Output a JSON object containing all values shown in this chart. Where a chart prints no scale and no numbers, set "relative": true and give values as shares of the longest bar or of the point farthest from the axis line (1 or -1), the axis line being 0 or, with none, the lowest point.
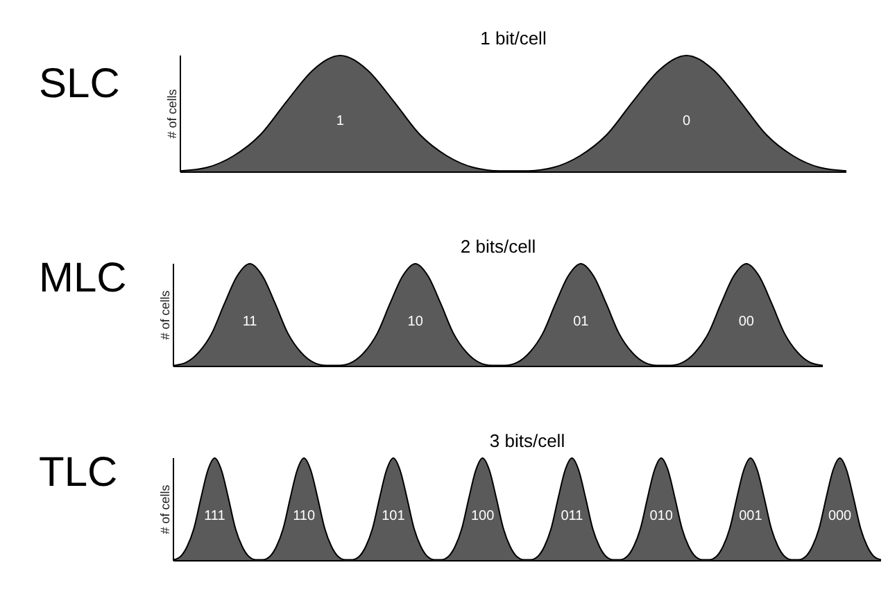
{
  "chart_data": [
    {
      "type": "area",
      "title": "SLC",
      "subtitle": "1 bit/cell",
      "ylabel": "# of cells",
      "relative": true,
      "annotations": [
        "1",
        "0"
      ],
      "categories": [
        null,
        null,
        null,
        null,
        null,
        null,
        null,
        null,
        null,
        null,
        null,
        null,
        null,
        null,
        null,
        null,
        null,
        null,
        null,
        null,
        null,
        null,
        null,
        null,
        null,
        null
      ],
      "series": [
        {
          "color": "#5a5a5a",
          "values": [
            0.01,
            0.04,
            0.14,
            0.32,
            0.61,
            0.88,
            1,
            0.88,
            0.61,
            0.32,
            0.14,
            0.04,
            0.01,
            0.01,
            0.04,
            0.14,
            0.32,
            0.61,
            0.88,
            1,
            0.88,
            0.61,
            0.32,
            0.14,
            0.04,
            0.01
          ]
        }
      ]
    },
    {
      "type": "area",
      "title": "MLC",
      "subtitle": "2 bits/cell",
      "ylabel": "# of cells",
      "relative": true,
      "annotations": [
        "11",
        "10",
        "01",
        "00"
      ],
      "categories": [
        null,
        null,
        null,
        null,
        null,
        null,
        null,
        null,
        null,
        null,
        null,
        null,
        null,
        null,
        null,
        null,
        null,
        null,
        null,
        null,
        null,
        null,
        null,
        null,
        null,
        null,
        null,
        null,
        null,
        null,
        null,
        null,
        null,
        null,
        null,
        null,
        null,
        null,
        null,
        null,
        null,
        null,
        null,
        null,
        null,
        null,
        null,
        null,
        null,
        null,
        null,
        null
      ],
      "series": [
        {
          "color": "#5a5a5a",
          "values": [
            0.01,
            0.04,
            0.14,
            0.32,
            0.61,
            0.88,
            1,
            0.88,
            0.61,
            0.32,
            0.14,
            0.04,
            0.01,
            0.01,
            0.04,
            0.14,
            0.32,
            0.61,
            0.88,
            1,
            0.88,
            0.61,
            0.32,
            0.14,
            0.04,
            0.01,
            0.01,
            0.04,
            0.14,
            0.32,
            0.61,
            0.88,
            1,
            0.88,
            0.61,
            0.32,
            0.14,
            0.04,
            0.01,
            0.01,
            0.04,
            0.14,
            0.32,
            0.61,
            0.88,
            1,
            0.88,
            0.61,
            0.32,
            0.14,
            0.04,
            0.01
          ]
        }
      ]
    },
    {
      "type": "area",
      "title": "TLC",
      "subtitle": "3 bits/cell",
      "ylabel": "# of cells",
      "relative": true,
      "annotations": [
        "111",
        "110",
        "101",
        "100",
        "011",
        "010",
        "001",
        "000"
      ],
      "categories": [
        null,
        null,
        null,
        null,
        null,
        null,
        null,
        null,
        null,
        null,
        null,
        null,
        null,
        null,
        null,
        null,
        null,
        null,
        null,
        null,
        null,
        null,
        null,
        null,
        null,
        null,
        null,
        null,
        null,
        null,
        null,
        null,
        null,
        null,
        null,
        null,
        null,
        null,
        null,
        null,
        null,
        null,
        null,
        null,
        null,
        null,
        null,
        null,
        null,
        null,
        null,
        null,
        null,
        null,
        null,
        null,
        null,
        null,
        null,
        null,
        null,
        null,
        null,
        null,
        null,
        null,
        null,
        null,
        null,
        null,
        null,
        null,
        null,
        null,
        null,
        null,
        null,
        null,
        null,
        null,
        null,
        null,
        null,
        null,
        null,
        null,
        null,
        null,
        null,
        null,
        null,
        null,
        null,
        null,
        null,
        null,
        null,
        null,
        null,
        null,
        null,
        null,
        null,
        null
      ],
      "series": [
        {
          "color": "#5a5a5a",
          "values": [
            0.01,
            0.04,
            0.14,
            0.32,
            0.61,
            0.88,
            1,
            0.88,
            0.61,
            0.32,
            0.14,
            0.04,
            0.01,
            0.01,
            0.04,
            0.14,
            0.32,
            0.61,
            0.88,
            1,
            0.88,
            0.61,
            0.32,
            0.14,
            0.04,
            0.01,
            0.01,
            0.04,
            0.14,
            0.32,
            0.61,
            0.88,
            1,
            0.88,
            0.61,
            0.32,
            0.14,
            0.04,
            0.01,
            0.01,
            0.04,
            0.14,
            0.32,
            0.61,
            0.88,
            1,
            0.88,
            0.61,
            0.32,
            0.14,
            0.04,
            0.01,
            0.01,
            0.04,
            0.14,
            0.32,
            0.61,
            0.88,
            1,
            0.88,
            0.61,
            0.32,
            0.14,
            0.04,
            0.01,
            0.01,
            0.04,
            0.14,
            0.32,
            0.61,
            0.88,
            1,
            0.88,
            0.61,
            0.32,
            0.14,
            0.04,
            0.01,
            0.01,
            0.04,
            0.14,
            0.32,
            0.61,
            0.88,
            1,
            0.88,
            0.61,
            0.32,
            0.14,
            0.04,
            0.01,
            0.01,
            0.04,
            0.14,
            0.32,
            0.61,
            0.88,
            1,
            0.88,
            0.61,
            0.32,
            0.14,
            0.04,
            0.01
          ]
        }
      ]
    }
  ]
}
